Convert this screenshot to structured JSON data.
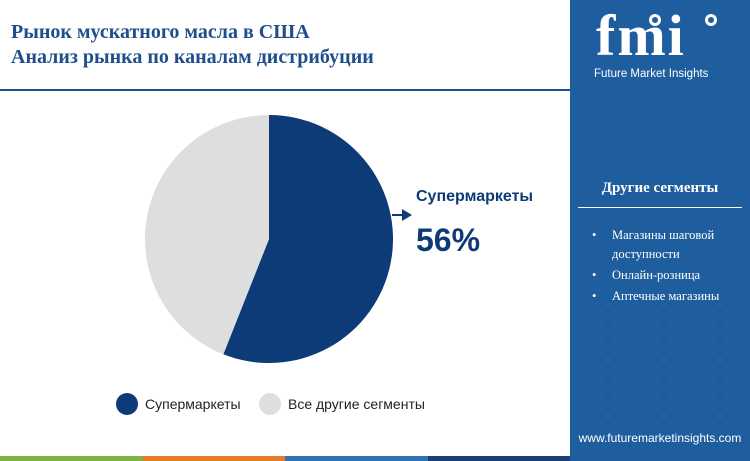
{
  "title": {
    "line1": "Рынок мускатного масла в США",
    "line2": "Анализ рынка по каналам дистрибуции"
  },
  "callout": {
    "label": "Супермаркеты",
    "value": "56%"
  },
  "chart_data": {
    "type": "pie",
    "categories": [
      "Супермаркеты",
      "Все другие сегменты"
    ],
    "values": [
      56,
      44
    ],
    "colors": [
      "#0d3b78",
      "#dedede"
    ],
    "legend_position": "bottom"
  },
  "legend": [
    {
      "label": "Супермаркеты",
      "color": "#0d3b78"
    },
    {
      "label": "Все другие сегменты",
      "color": "#dedede"
    }
  ],
  "side_panel": {
    "logo_text": "fmi",
    "logo_subtitle": "Future Market Insights",
    "other_title": "Другие сегменты",
    "other_items": [
      "Магазины шаговой доступности",
      "Онлайн-розница",
      "Аптечные магазины"
    ],
    "bullet": "•",
    "website": "www.futuremarketinsights.com"
  },
  "bottom_bar_colors": [
    "#7db343",
    "#e37b2b",
    "#2f74b5",
    "#1d3f73"
  ],
  "colors": {
    "accent": "#1f4e8c",
    "panel": "#1f5e9e"
  }
}
